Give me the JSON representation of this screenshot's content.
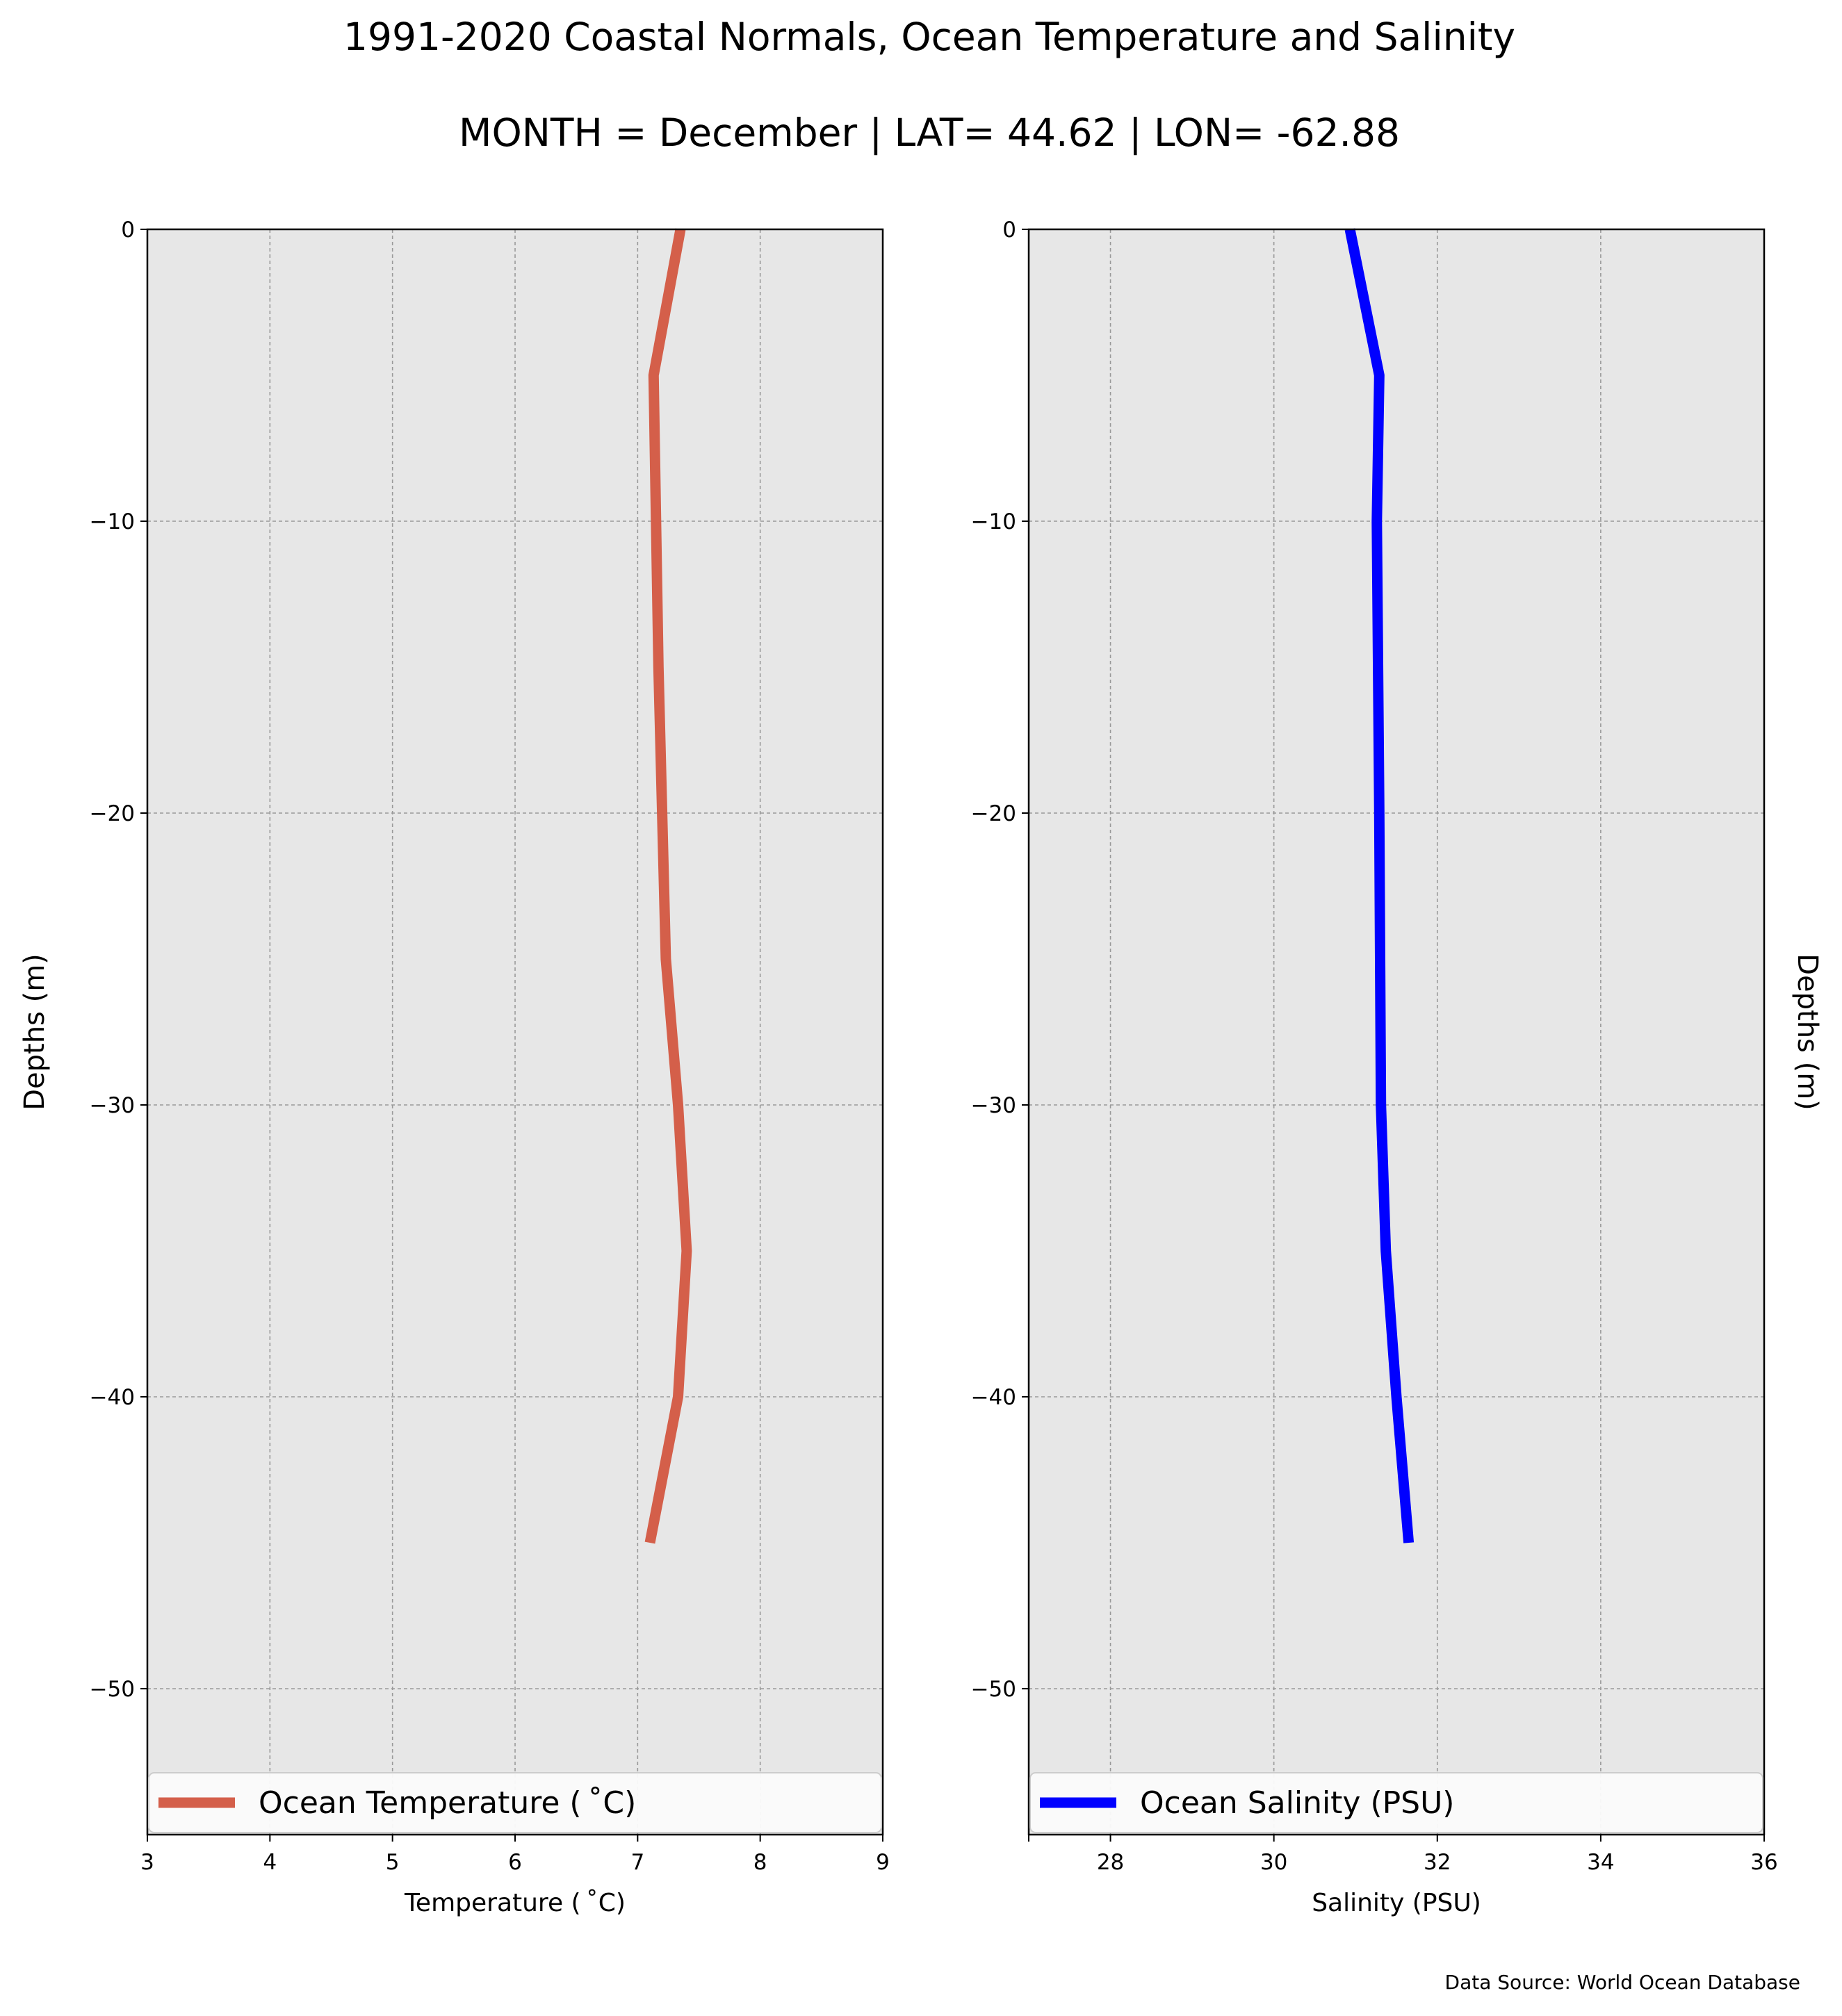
{
  "figure": {
    "title": "1991-2020 Coastal Normals, Ocean Temperature and Salinity",
    "subtitle": "MONTH = December | LAT= 44.62 | LON= -62.88",
    "source": "Data Source: World Ocean Database"
  },
  "chart_data": [
    {
      "type": "line",
      "xlabel": "Temperature ($^\\circ$C)",
      "xlabel_display": "Temperature ( ˚C)",
      "ylabel": "Depths (m)",
      "xlim": [
        3,
        9
      ],
      "ylim": [
        -55,
        0
      ],
      "xticks": [
        3,
        4,
        5,
        6,
        7,
        8,
        9
      ],
      "xtick_labels": [
        "3",
        "4",
        "5",
        "6",
        "7",
        "8",
        "9"
      ],
      "yticks": [
        0,
        -10,
        -20,
        -30,
        -40,
        -50
      ],
      "ytick_labels": [
        "0",
        "−10",
        "−20",
        "−30",
        "−40",
        "−50"
      ],
      "grid": true,
      "legend_placement": "bottom",
      "series": [
        {
          "name": "Ocean Temperature ( ˚C)",
          "color": "#d45f4a",
          "x": [
            7.35,
            7.13,
            7.17,
            7.23,
            7.33,
            7.4,
            7.33,
            7.1
          ],
          "y": [
            0,
            -5,
            -15,
            -25,
            -30,
            -35,
            -40,
            -45
          ]
        }
      ]
    },
    {
      "type": "line",
      "xlabel": "Salinity (PSU)",
      "ylabel": "Depths (m)",
      "xlim": [
        27,
        36
      ],
      "ylim": [
        -55,
        0
      ],
      "xticks": [
        27,
        28,
        30,
        32,
        34,
        36
      ],
      "xtick_labels": [
        "",
        "28",
        "30",
        "32",
        "34",
        "36"
      ],
      "yticks": [
        0,
        -10,
        -20,
        -30,
        -40,
        -50
      ],
      "ytick_labels": [
        "0",
        "−10",
        "−20",
        "−30",
        "−40",
        "−50"
      ],
      "grid": true,
      "legend_placement": "bottom",
      "series": [
        {
          "name": "Ocean Salinity (PSU)",
          "color": "#0000ff",
          "x": [
            30.93,
            31.29,
            31.26,
            31.29,
            31.31,
            31.37,
            31.5,
            31.65
          ],
          "y": [
            0,
            -5,
            -10,
            -20,
            -30,
            -35,
            -40,
            -45
          ]
        }
      ]
    }
  ]
}
